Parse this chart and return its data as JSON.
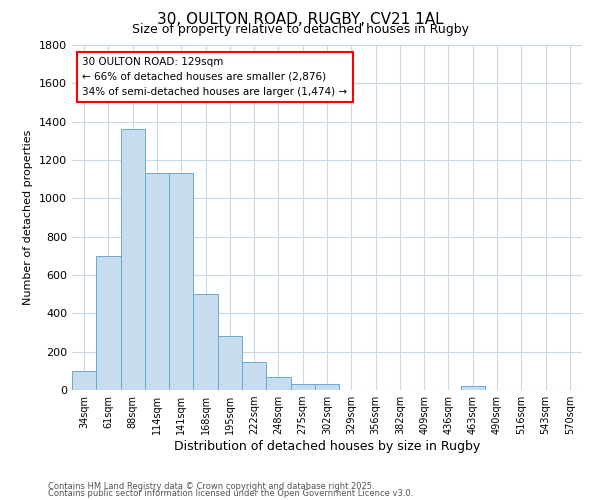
{
  "title1": "30, OULTON ROAD, RUGBY, CV21 1AL",
  "title2": "Size of property relative to detached houses in Rugby",
  "xlabel": "Distribution of detached houses by size in Rugby",
  "ylabel": "Number of detached properties",
  "bar_color": "#c8dcf0",
  "bar_edge_color": "#6aaad4",
  "bg_color": "#ffffff",
  "grid_color": "#c8d8e8",
  "categories": [
    "34sqm",
    "61sqm",
    "88sqm",
    "114sqm",
    "141sqm",
    "168sqm",
    "195sqm",
    "222sqm",
    "248sqm",
    "275sqm",
    "302sqm",
    "329sqm",
    "356sqm",
    "382sqm",
    "409sqm",
    "436sqm",
    "463sqm",
    "490sqm",
    "516sqm",
    "543sqm",
    "570sqm"
  ],
  "values": [
    100,
    700,
    1360,
    1130,
    1130,
    500,
    280,
    145,
    70,
    30,
    30,
    0,
    0,
    0,
    0,
    0,
    20,
    0,
    0,
    0,
    0
  ],
  "ylim": [
    0,
    1800
  ],
  "yticks": [
    0,
    200,
    400,
    600,
    800,
    1000,
    1200,
    1400,
    1600,
    1800
  ],
  "annotation_title": "30 OULTON ROAD: 129sqm",
  "annotation_line1": "← 66% of detached houses are smaller (2,876)",
  "annotation_line2": "34% of semi-detached houses are larger (1,474) →",
  "footnote1": "Contains HM Land Registry data © Crown copyright and database right 2025.",
  "footnote2": "Contains public sector information licensed under the Open Government Licence v3.0."
}
